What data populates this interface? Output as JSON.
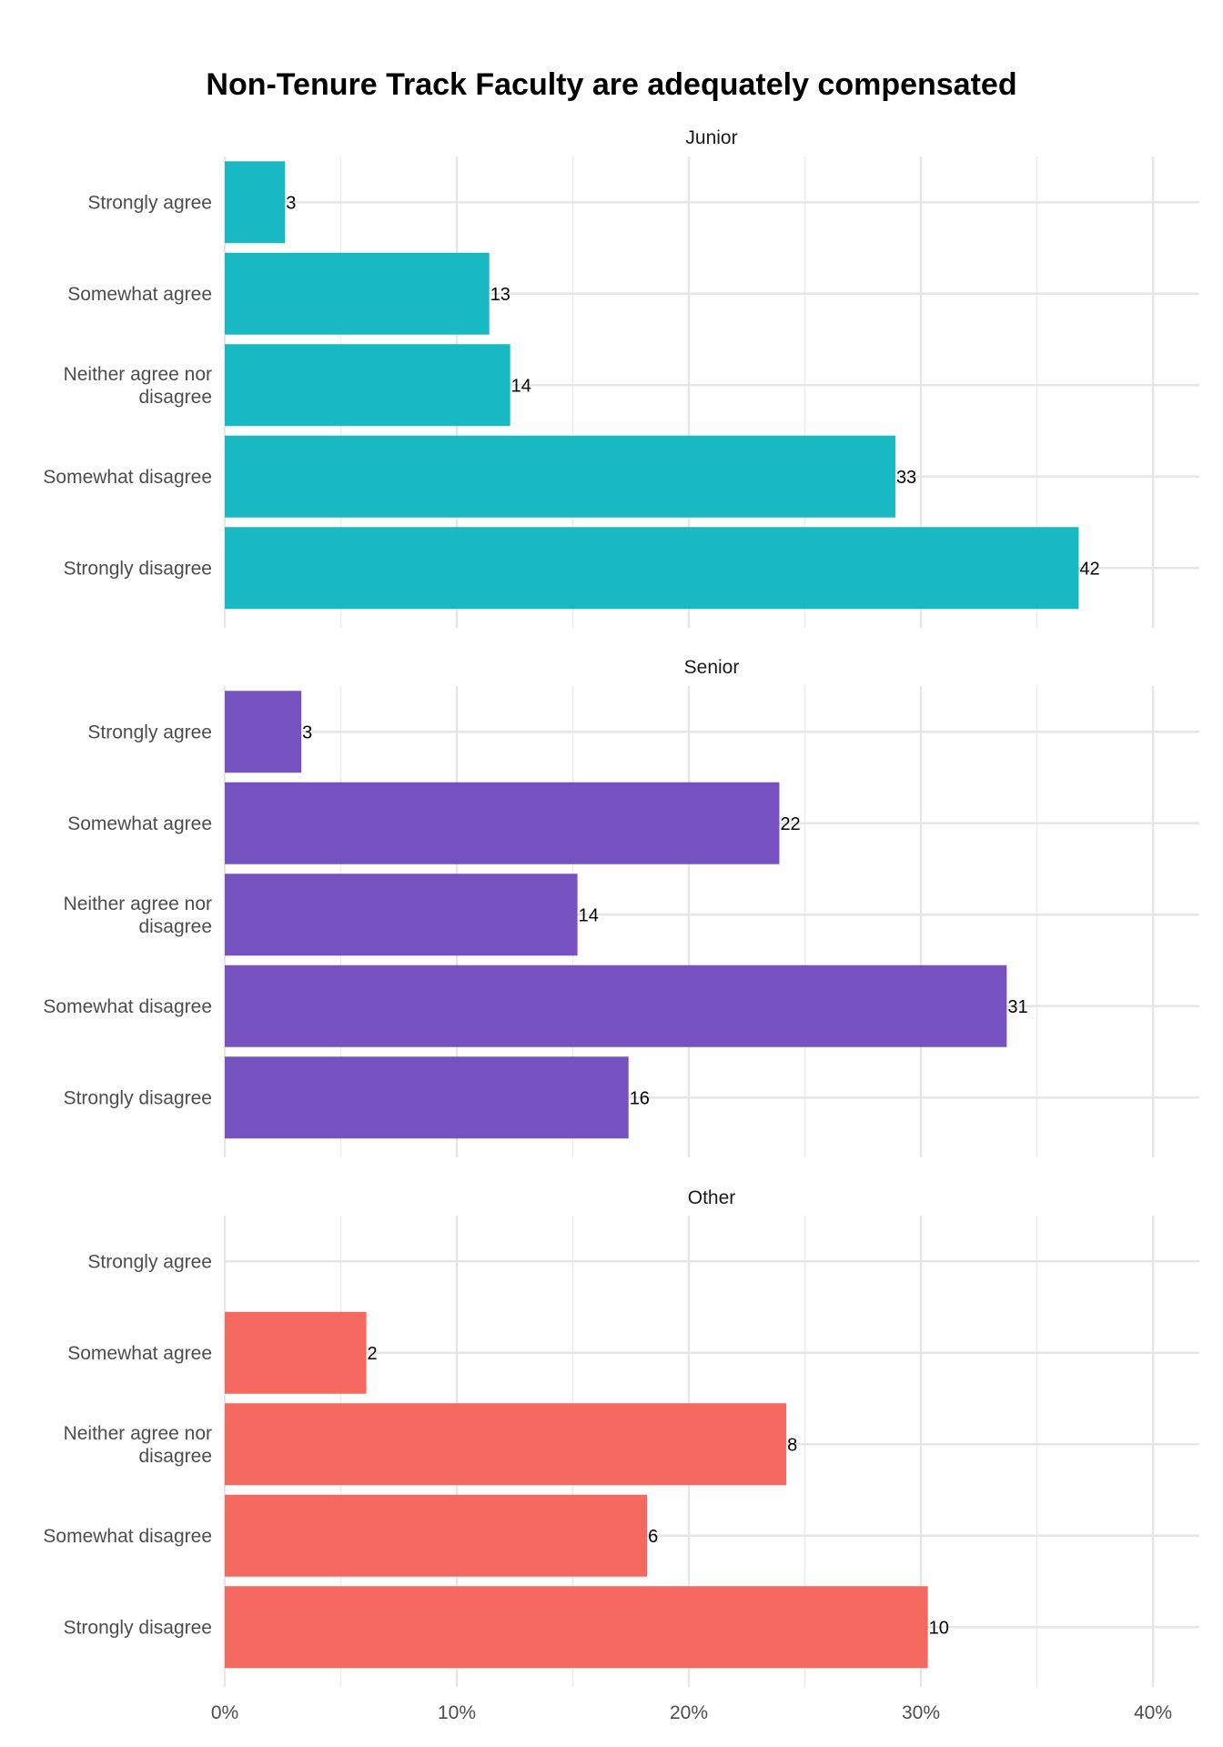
{
  "chart_data": {
    "type": "bar",
    "orientation": "horizontal",
    "title": "Non-Tenure Track Faculty are adequately compensated",
    "xlabel": "",
    "ylabel": "",
    "xlim": [
      0,
      0.42
    ],
    "x_ticks": [
      0,
      0.1,
      0.2,
      0.3,
      0.4
    ],
    "x_tick_labels": [
      "0%",
      "10%",
      "20%",
      "30%",
      "40%"
    ],
    "grid": true,
    "legend": "none",
    "categories": [
      [
        "Strongly agree"
      ],
      [
        "Somewhat agree"
      ],
      [
        "Neither agree nor",
        "disagree"
      ],
      [
        "Somewhat disagree"
      ],
      [
        "Strongly disagree"
      ]
    ],
    "facets": [
      {
        "name": "Junior",
        "color": "#19B9C3",
        "counts": [
          3,
          13,
          14,
          33,
          42
        ],
        "percents": [
          0.026,
          0.114,
          0.123,
          0.289,
          0.368
        ]
      },
      {
        "name": "Senior",
        "color": "#7652C1",
        "counts": [
          3,
          22,
          14,
          31,
          16
        ],
        "percents": [
          0.033,
          0.239,
          0.152,
          0.337,
          0.174
        ]
      },
      {
        "name": "Other",
        "color": "#F4685F",
        "counts": [
          null,
          2,
          8,
          6,
          10
        ],
        "percents": [
          null,
          0.061,
          0.242,
          0.182,
          0.303
        ]
      }
    ]
  }
}
